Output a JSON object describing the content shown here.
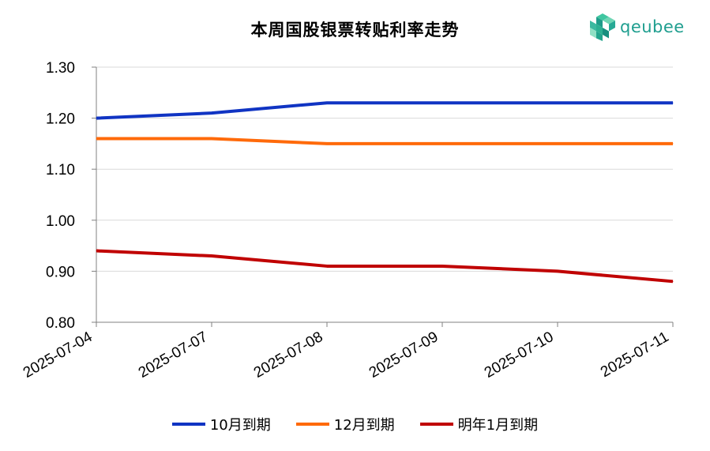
{
  "chart_data": {
    "type": "line",
    "title": "本周国股银票转贴利率走势",
    "categories": [
      "2025-07-04",
      "2025-07-07",
      "2025-07-08",
      "2025-07-09",
      "2025-07-10",
      "2025-07-11"
    ],
    "ylim": [
      0.8,
      1.3
    ],
    "yticks": [
      "0.80",
      "0.90",
      "1.00",
      "1.10",
      "1.20",
      "1.30"
    ],
    "grid": true,
    "legend_position": "bottom",
    "series": [
      {
        "name": "10月到期",
        "color": "#1034c3",
        "values": [
          1.2,
          1.21,
          1.23,
          1.23,
          1.23,
          1.23
        ]
      },
      {
        "name": "12月到期",
        "color": "#ff6a0a",
        "values": [
          1.16,
          1.16,
          1.15,
          1.15,
          1.15,
          1.15
        ]
      },
      {
        "name": "明年1月到期",
        "color": "#c00000",
        "values": [
          0.94,
          0.93,
          0.91,
          0.91,
          0.9,
          0.88
        ]
      }
    ]
  },
  "logo": {
    "text": "qeubee"
  }
}
